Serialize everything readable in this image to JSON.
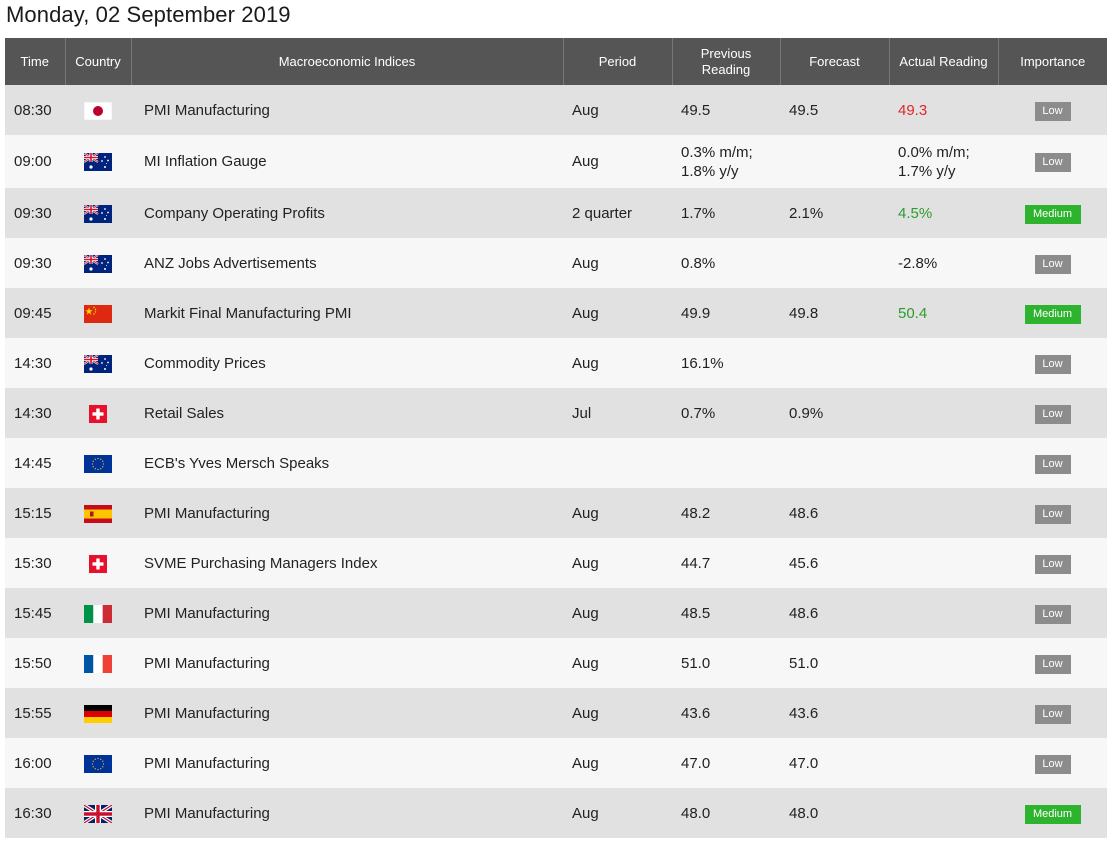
{
  "page_title": "Monday, 02 September 2019",
  "headers": {
    "time": "Time",
    "country": "Country",
    "indices": "Macroeconomic Indices",
    "period": "Period",
    "previous_l1": "Previous",
    "previous_l2": "Reading",
    "forecast": "Forecast",
    "actual": "Actual Reading",
    "importance": "Importance"
  },
  "colors": {
    "header_bg": "#555555",
    "row_odd": "#e1e1e1",
    "row_even": "#f7f7f7",
    "red": "#e0262b",
    "green": "#2e9b2e",
    "badge_low": "#8c8c8c",
    "badge_medium": "#2db32d"
  },
  "rows": [
    {
      "time": "08:30",
      "country_icon": "japan-flag-icon",
      "indicator": "PMI Manufacturing",
      "period": "Aug",
      "previous": "49.5",
      "forecast": "49.5",
      "actual": "49.3",
      "actual_color": "red",
      "importance": "Low"
    },
    {
      "time": "09:00",
      "country_icon": "australia-flag-icon",
      "indicator": "MI Inflation Gauge",
      "period": "Aug",
      "previous_l1": "0.3% m/m;",
      "previous_l2": "1.8% y/y",
      "forecast": "",
      "actual_l1": "0.0% m/m;",
      "actual_l2": "1.7% y/y",
      "actual_color": "",
      "importance": "Low"
    },
    {
      "time": "09:30",
      "country_icon": "australia-flag-icon",
      "indicator": "Company Operating Profits",
      "period": "2 quarter",
      "previous": "1.7%",
      "forecast": "2.1%",
      "actual": "4.5%",
      "actual_color": "green",
      "importance": "Medium"
    },
    {
      "time": "09:30",
      "country_icon": "australia-flag-icon",
      "indicator": "ANZ Jobs Advertisements",
      "period": "Aug",
      "previous": "0.8%",
      "forecast": "",
      "actual": "-2.8%",
      "actual_color": "",
      "importance": "Low"
    },
    {
      "time": "09:45",
      "country_icon": "china-flag-icon",
      "indicator": "Markit Final Manufacturing PMI",
      "period": "Aug",
      "previous": "49.9",
      "forecast": "49.8",
      "actual": "50.4",
      "actual_color": "green",
      "importance": "Medium"
    },
    {
      "time": "14:30",
      "country_icon": "australia-flag-icon",
      "indicator": "Commodity Prices",
      "period": "Aug",
      "previous": "16.1%",
      "forecast": "",
      "actual": "",
      "actual_color": "",
      "importance": "Low"
    },
    {
      "time": "14:30",
      "country_icon": "switzerland-flag-icon",
      "indicator": "Retail Sales",
      "period": "Jul",
      "previous": "0.7%",
      "forecast": "0.9%",
      "actual": "",
      "actual_color": "",
      "importance": "Low"
    },
    {
      "time": "14:45",
      "country_icon": "eu-flag-icon",
      "indicator": "ECB's Yves Mersch Speaks",
      "period": "",
      "previous": "",
      "forecast": "",
      "actual": "",
      "actual_color": "",
      "importance": "Low"
    },
    {
      "time": "15:15",
      "country_icon": "spain-flag-icon",
      "indicator": "PMI Manufacturing",
      "period": "Aug",
      "previous": "48.2",
      "forecast": "48.6",
      "actual": "",
      "actual_color": "",
      "importance": "Low"
    },
    {
      "time": "15:30",
      "country_icon": "switzerland-flag-icon",
      "indicator": "SVME Purchasing Managers Index",
      "period": "Aug",
      "previous": "44.7",
      "forecast": "45.6",
      "actual": "",
      "actual_color": "",
      "importance": "Low"
    },
    {
      "time": "15:45",
      "country_icon": "italy-flag-icon",
      "indicator": "PMI Manufacturing",
      "period": "Aug",
      "previous": "48.5",
      "forecast": "48.6",
      "actual": "",
      "actual_color": "",
      "importance": "Low"
    },
    {
      "time": "15:50",
      "country_icon": "france-flag-icon",
      "indicator": "PMI Manufacturing",
      "period": "Aug",
      "previous": "51.0",
      "forecast": "51.0",
      "actual": "",
      "actual_color": "",
      "importance": "Low"
    },
    {
      "time": "15:55",
      "country_icon": "germany-flag-icon",
      "indicator": "PMI Manufacturing",
      "period": "Aug",
      "previous": "43.6",
      "forecast": "43.6",
      "actual": "",
      "actual_color": "",
      "importance": "Low"
    },
    {
      "time": "16:00",
      "country_icon": "eu-flag-icon",
      "indicator": "PMI Manufacturing",
      "period": "Aug",
      "previous": "47.0",
      "forecast": "47.0",
      "actual": "",
      "actual_color": "",
      "importance": "Low"
    },
    {
      "time": "16:30",
      "country_icon": "uk-flag-icon",
      "indicator": "PMI Manufacturing",
      "period": "Aug",
      "previous": "48.0",
      "forecast": "48.0",
      "actual": "",
      "actual_color": "",
      "importance": "Medium"
    }
  ]
}
